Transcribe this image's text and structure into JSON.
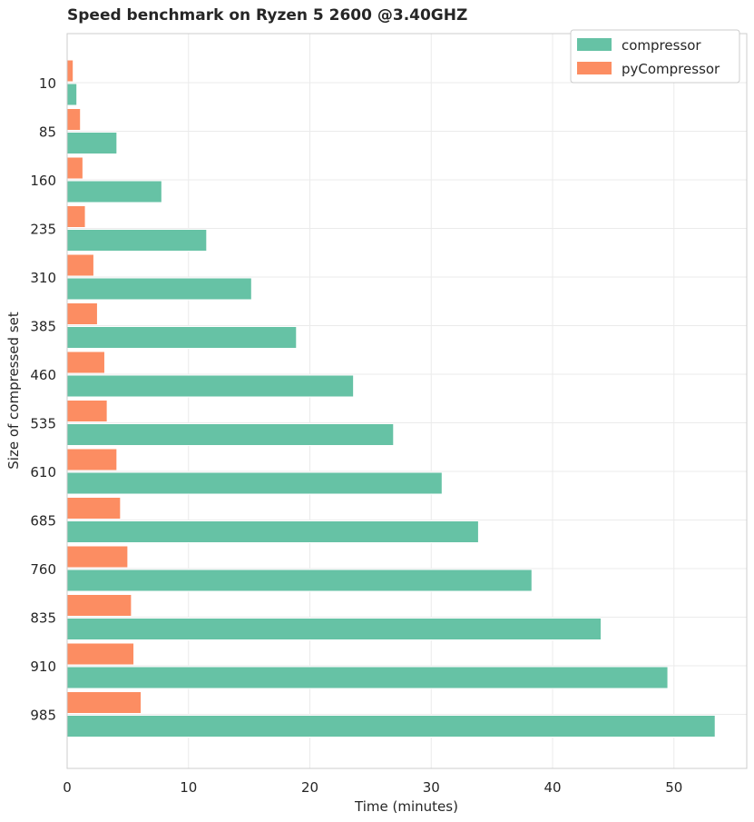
{
  "chart_data": {
    "type": "bar",
    "orientation": "horizontal",
    "title": "Speed benchmark on Ryzen 5 2600 @3.40GHZ",
    "xlabel": "Time (minutes)",
    "ylabel": "Size of compressed set",
    "xlim": [
      0,
      56
    ],
    "xticks": [
      0,
      10,
      20,
      30,
      40,
      50
    ],
    "grid": true,
    "legend_position": "top-right",
    "categories": [
      "10",
      "85",
      "160",
      "235",
      "310",
      "385",
      "460",
      "535",
      "610",
      "685",
      "760",
      "835",
      "910",
      "985"
    ],
    "series": [
      {
        "name": "compressor",
        "color": "#66c2a5",
        "values": [
          0.8,
          4.1,
          7.8,
          11.5,
          15.2,
          18.9,
          23.6,
          26.9,
          30.9,
          33.9,
          38.3,
          44.0,
          49.5,
          53.4
        ]
      },
      {
        "name": "pyCompressor",
        "color": "#fc8d62",
        "values": [
          0.5,
          1.1,
          1.3,
          1.5,
          2.2,
          2.5,
          3.1,
          3.3,
          4.1,
          4.4,
          5.0,
          5.3,
          5.5,
          6.1
        ]
      }
    ]
  }
}
